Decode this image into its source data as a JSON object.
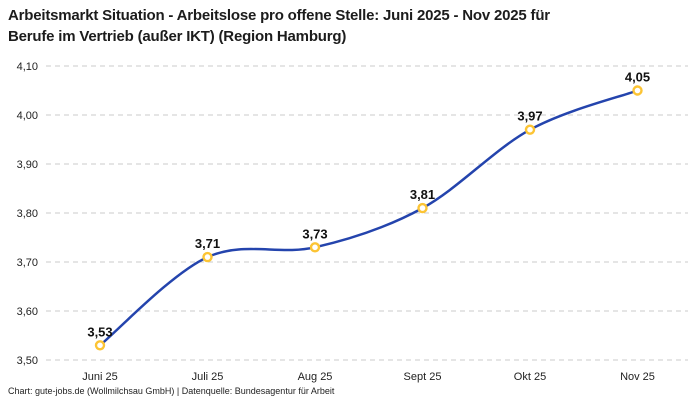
{
  "header": {
    "title_line1": "Arbeitsmarkt Situation - Arbeitslose pro offene Stelle: Juni 2025 - Nov 2025 für",
    "title_line2": "Berufe im Vertrieb (außer IKT) (Region Hamburg)"
  },
  "footer": {
    "credit": "Chart: gute-jobs.de (Wollmilchsau GmbH) | Datenquelle: Bundesagentur für Arbeit"
  },
  "chart_data": {
    "type": "line",
    "title": "Arbeitsmarkt Situation - Arbeitslose pro offene Stelle: Juni 2025 - Nov 2025 für Berufe im Vertrieb (außer IKT) (Region Hamburg)",
    "categories": [
      "Juni 25",
      "Juli 25",
      "Aug 25",
      "Sept 25",
      "Okt 25",
      "Nov 25"
    ],
    "values": [
      3.53,
      3.71,
      3.73,
      3.81,
      3.97,
      4.05
    ],
    "value_labels": [
      "3,53",
      "3,71",
      "3,73",
      "3,81",
      "3,97",
      "4,05"
    ],
    "y_ticks": [
      "3,50",
      "3,60",
      "3,70",
      "3,80",
      "3,90",
      "4,00",
      "4,10"
    ],
    "y_tick_values": [
      3.5,
      3.6,
      3.7,
      3.8,
      3.9,
      4.0,
      4.1
    ],
    "ylim": [
      3.5,
      4.1
    ],
    "xlabel": "",
    "ylabel": "",
    "grid": "dashed-horizontal",
    "legend": "none",
    "line_color": "#2444AD",
    "marker_stroke": "#FCC434",
    "marker_fill": "#FFFFFF",
    "grid_color": "#CBCBCB"
  }
}
